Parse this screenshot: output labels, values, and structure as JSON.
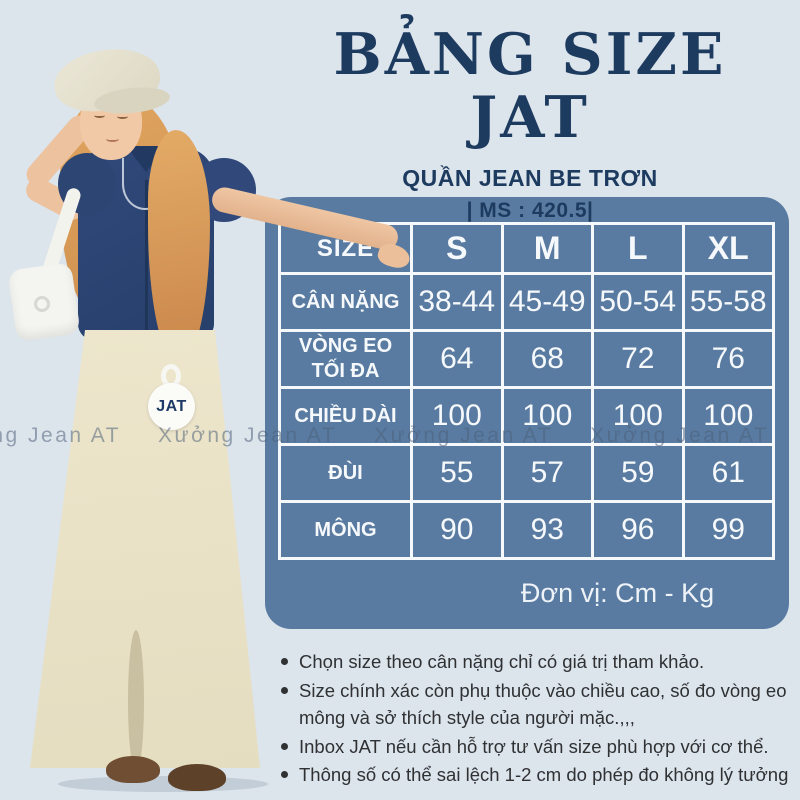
{
  "page": {
    "title": "BẢNG SIZE JAT",
    "subtitle": "QUẦN JEAN BE TRƠN",
    "ms_code": "| MS : 420.5|"
  },
  "size_table": {
    "columns": [
      "SIZE",
      "S",
      "M",
      "L",
      "XL"
    ],
    "rows": [
      {
        "label": "CÂN NẶNG",
        "values": [
          "38-44",
          "45-49",
          "50-54",
          "55-58"
        ]
      },
      {
        "label": "VÒNG EO TỐI ĐA",
        "values": [
          "64",
          "68",
          "72",
          "76"
        ]
      },
      {
        "label": "CHIỀU DÀI",
        "values": [
          "100",
          "100",
          "100",
          "100"
        ]
      },
      {
        "label": "ĐÙI",
        "values": [
          "55",
          "57",
          "59",
          "61"
        ]
      },
      {
        "label": "MÔNG",
        "values": [
          "90",
          "93",
          "96",
          "99"
        ]
      }
    ],
    "unit_note": "Đơn vị: Cm - Kg"
  },
  "notes": [
    "Chọn size theo cân nặng chỉ có giá trị tham khảo.",
    "Size chính xác còn phụ thuộc vào chiều cao, số đo vòng eo mông và sở thích style của người mặc.,,,",
    "Inbox JAT nếu cần hỗ trợ tư vấn size phù hợp với cơ thể.",
    "Thông số có thể sai lệch 1-2 cm do phép đo không lý tưởng"
  ],
  "watermark": {
    "text": "Xưởng Jean AT"
  },
  "brand_tag": {
    "label": "JAT"
  },
  "colors": {
    "background": "#dce4ec",
    "card_blue": "#5a7ba1",
    "navy": "#1d3a5f",
    "table_text": "#f6f9fb",
    "note_text": "#2f3133"
  }
}
